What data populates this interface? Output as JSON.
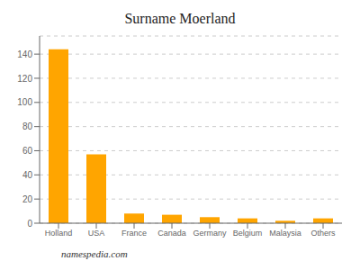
{
  "chart_data": {
    "type": "bar",
    "title": "Surname Moerland",
    "categories": [
      "Holland",
      "USA",
      "France",
      "Canada",
      "Germany",
      "Belgium",
      "Malaysia",
      "Others"
    ],
    "values": [
      144,
      57,
      8,
      7,
      5,
      4,
      2,
      4
    ],
    "color": "#FFA500",
    "ylim": [
      0,
      155
    ],
    "yticks": [
      0,
      20,
      40,
      60,
      80,
      100,
      120,
      140
    ],
    "grid": true,
    "annotations": [
      "namespedia.com"
    ]
  }
}
